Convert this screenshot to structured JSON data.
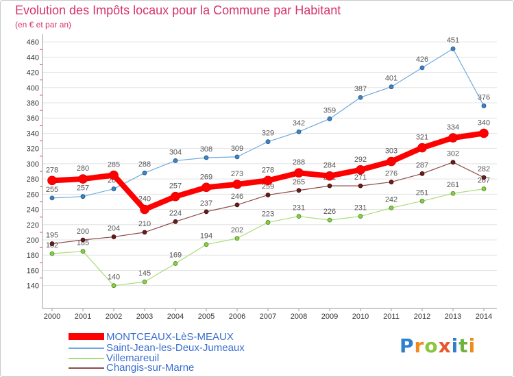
{
  "logo": {
    "text": "Proxiti",
    "colors": [
      "#2f7fd1",
      "#f08a1c",
      "#8cc63f",
      "#e9542b",
      "#2f7fd1",
      "#6cb33f",
      "#f08a1c"
    ]
  },
  "chart_data": {
    "type": "line",
    "title": "Evolution des Impôts locaux pour la Commune par Habitant",
    "subtitle": "(en € et par an)",
    "x": [
      2000,
      2001,
      2002,
      2003,
      2004,
      2005,
      2006,
      2007,
      2008,
      2009,
      2010,
      2011,
      2012,
      2013,
      2014
    ],
    "yticks": [
      140,
      160,
      180,
      200,
      220,
      240,
      260,
      280,
      300,
      320,
      340,
      360,
      380,
      400,
      420,
      440,
      460
    ],
    "ylim": [
      110,
      470
    ],
    "grid": true,
    "legend_position": "bottom-left",
    "series": [
      {
        "name": "MONTCEAUX-LèS-MEAUX",
        "color": "#ff0000",
        "marker_color": "#ff0000",
        "values": [
          278,
          280,
          285,
          240,
          257,
          269,
          273,
          278,
          288,
          284,
          292,
          303,
          321,
          334,
          340
        ]
      },
      {
        "name": "Saint-Jean-les-Deux-Jumeaux",
        "color": "#6fa8dc",
        "marker_color": "#3d85c6",
        "values": [
          255,
          257,
          267,
          288,
          304,
          308,
          309,
          329,
          342,
          359,
          387,
          401,
          426,
          451,
          376
        ]
      },
      {
        "name": "Villemareuil",
        "color": "#a9dc76",
        "marker_color": "#8ccc4a",
        "values": [
          182,
          185,
          140,
          145,
          169,
          194,
          202,
          223,
          231,
          226,
          231,
          242,
          251,
          261,
          267
        ]
      },
      {
        "name": "Changis-sur-Marne",
        "color": "#8e4a4a",
        "marker_color": "#6b1c1c",
        "values": [
          195,
          200,
          204,
          210,
          224,
          237,
          246,
          259,
          265,
          271,
          271,
          276,
          287,
          302,
          282
        ]
      }
    ]
  }
}
